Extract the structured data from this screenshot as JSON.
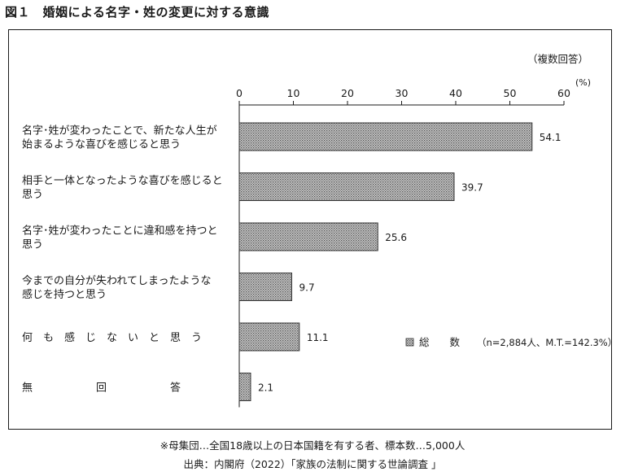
{
  "figure": {
    "title": "図１　婚姻による名字・姓の変更に対する意識",
    "note": "（複数回答）",
    "footnote": "※母集団…全国18歳以上の日本国籍を有する者、標本数…5,000人",
    "source": "出典：内閣府（2022）「家族の法制に関する世論調査 」"
  },
  "chart_data": {
    "type": "bar",
    "orientation": "horizontal",
    "categories": [
      [
        "名字･姓が変わったことで、新たな人生が",
        "始まるような喜びを感じると思う"
      ],
      [
        "相手と一体となったような喜びを感じると",
        "思う"
      ],
      [
        "名字･姓が変わったことに違和感を持つと",
        "思う"
      ],
      [
        "今までの自分が失われてしまったような",
        "感じを持つと思う"
      ],
      [
        "何　も　感　じ　な　い　と　思　う"
      ],
      [
        "無　　　　　　回　　　　　　答"
      ]
    ],
    "series": [
      {
        "name": "総　　数",
        "values": [
          54.1,
          39.7,
          25.6,
          9.7,
          11.1,
          2.1
        ],
        "value_labels": [
          "54.1",
          "39.7",
          "25.6",
          "9.7",
          "11.1",
          "2.1"
        ]
      }
    ],
    "legend_detail": "（n=2,884人、M.T.=142.3%）",
    "xlim": [
      0,
      60
    ],
    "xticks": [
      0,
      10,
      20,
      30,
      40,
      50,
      60
    ],
    "unit": "(%)",
    "legend_position": "bottom-right",
    "grid": false,
    "bar_fill": "#b4b4b4",
    "bar_stroke": "#333333"
  }
}
